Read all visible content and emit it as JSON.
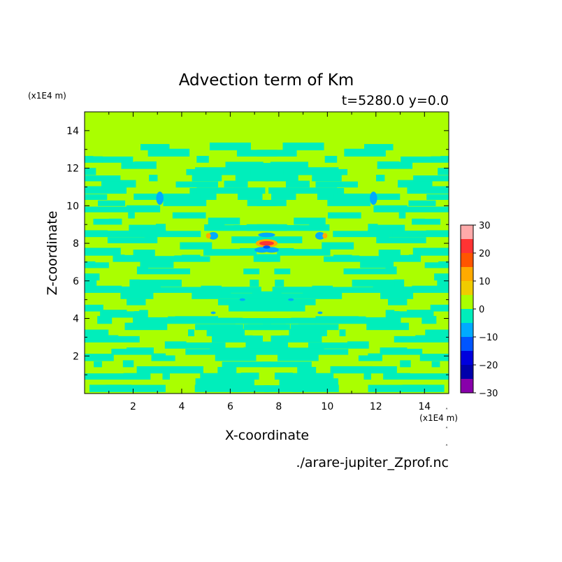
{
  "chart_data": {
    "type": "heatmap",
    "title": "Advection term of Km",
    "subtitle": "t=5280.0 y=0.0",
    "xlabel": "X-coordinate",
    "ylabel": "Z-coordinate",
    "x_unit": "(x1E4 m)",
    "y_unit": "(x1E4 m)",
    "xlim": [
      0.0,
      15.0
    ],
    "ylim": [
      0.0,
      15.0
    ],
    "x_ticks": [
      2,
      4,
      6,
      8,
      10,
      12,
      14
    ],
    "y_ticks": [
      2,
      4,
      6,
      8,
      10,
      12,
      14
    ],
    "footer": "./arare-jupiter_Zprof.nc",
    "colorbar": {
      "labels": [
        "30",
        "20",
        "10",
        "0",
        "−10",
        "−20",
        "−30"
      ],
      "label_values": [
        30,
        20,
        10,
        0,
        -10,
        -20,
        -30
      ],
      "bins": [
        {
          "min": 25,
          "max": 30,
          "color": "#ffaaaa"
        },
        {
          "min": 20,
          "max": 25,
          "color": "#ff3333"
        },
        {
          "min": 15,
          "max": 20,
          "color": "#ff5500"
        },
        {
          "min": 10,
          "max": 15,
          "color": "#ffaa00"
        },
        {
          "min": 5,
          "max": 10,
          "color": "#f0cc00"
        },
        {
          "min": 0,
          "max": 5,
          "color": "#aaff00"
        },
        {
          "min": -5,
          "max": 0,
          "color": "#00eebb"
        },
        {
          "min": -10,
          "max": -5,
          "color": "#00aaff"
        },
        {
          "min": -15,
          "max": -10,
          "color": "#0055ff"
        },
        {
          "min": -20,
          "max": -15,
          "color": "#0000dd"
        },
        {
          "min": -25,
          "max": -20,
          "color": "#0000aa"
        },
        {
          "min": -30,
          "max": -25,
          "color": "#8800aa"
        }
      ]
    }
  }
}
